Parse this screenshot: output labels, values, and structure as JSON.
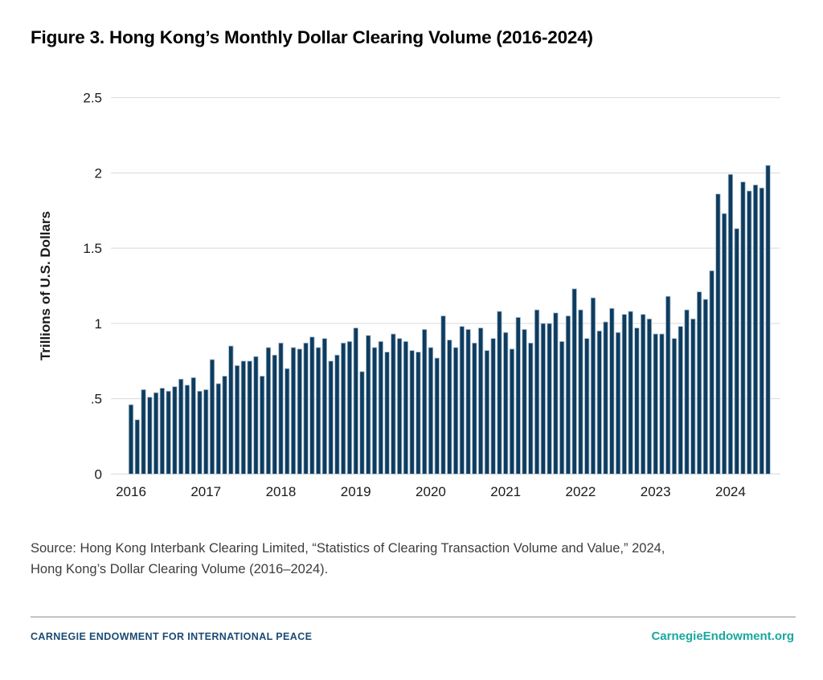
{
  "figure": {
    "title": "Figure 3. Hong Kong’s Monthly Dollar Clearing Volume (2016-2024)"
  },
  "chart_data": {
    "type": "bar",
    "title": "Figure 3. Hong Kong’s Monthly Dollar Clearing Volume (2016-2024)",
    "xlabel": "",
    "ylabel": "Trillions of U.S. Dollars",
    "unit": "trillions of U.S. dollars",
    "frequency": "monthly",
    "ylim": [
      0,
      2.5
    ],
    "ytick_values": [
      0,
      0.5,
      1,
      1.5,
      2,
      2.5
    ],
    "ytick_labels": [
      "0",
      ".5",
      "1",
      "1.5",
      "2",
      "2.5"
    ],
    "xtick_labels": [
      "2016",
      "2017",
      "2018",
      "2019",
      "2020",
      "2021",
      "2022",
      "2023",
      "2024"
    ],
    "grid": true,
    "legend": false,
    "bar_color": "#0e3c5f",
    "bar_outline_color": "#a3b8cb",
    "grid_color": "#d9d9d9",
    "series": [
      {
        "year": "2016",
        "values": [
          0.46,
          0.36,
          0.56,
          0.51,
          0.54,
          0.57,
          0.55,
          0.58,
          0.63,
          0.59,
          0.64,
          0.55
        ]
      },
      {
        "year": "2017",
        "values": [
          0.56,
          0.76,
          0.6,
          0.65,
          0.85,
          0.72,
          0.75,
          0.75,
          0.78,
          0.65,
          0.84,
          0.79
        ]
      },
      {
        "year": "2018",
        "values": [
          0.87,
          0.7,
          0.84,
          0.83,
          0.87,
          0.91,
          0.84,
          0.9,
          0.75,
          0.79,
          0.87,
          0.88
        ]
      },
      {
        "year": "2019",
        "values": [
          0.97,
          0.68,
          0.92,
          0.84,
          0.88,
          0.81,
          0.93,
          0.9,
          0.88,
          0.82,
          0.81,
          0.96
        ]
      },
      {
        "year": "2020",
        "values": [
          0.84,
          0.77,
          1.05,
          0.89,
          0.84,
          0.98,
          0.96,
          0.87,
          0.97,
          0.82,
          0.9,
          1.08
        ]
      },
      {
        "year": "2021",
        "values": [
          0.94,
          0.83,
          1.04,
          0.96,
          0.87,
          1.09,
          1.0,
          1.0,
          1.07,
          0.88,
          1.05,
          1.23
        ]
      },
      {
        "year": "2022",
        "values": [
          1.09,
          0.9,
          1.17,
          0.95,
          1.01,
          1.1,
          0.94,
          1.06,
          1.08,
          0.97,
          1.06,
          1.03
        ]
      },
      {
        "year": "2023",
        "values": [
          0.93,
          0.93,
          1.18,
          0.9,
          0.98,
          1.09,
          1.03,
          1.21,
          1.16,
          1.35,
          1.86,
          1.73
        ]
      },
      {
        "year": "2024",
        "values": [
          1.99,
          1.63,
          1.94,
          1.88,
          1.92,
          1.9,
          2.05
        ]
      }
    ]
  },
  "source": {
    "lines": [
      "Source: Hong Kong Interbank Clearing Limited, “Statistics of Clearing Transaction Volume and Value,” 2024,",
      "Hong Kong’s Dollar Clearing Volume (2016–2024)."
    ]
  },
  "footer": {
    "org": "CARNEGIE ENDOWMENT FOR INTERNATIONAL PEACE",
    "website": "CarnegieEndowment.org"
  }
}
